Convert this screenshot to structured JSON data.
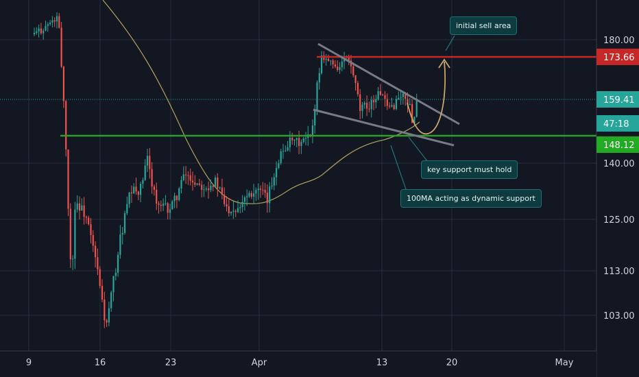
{
  "chart_data": {
    "type": "candlestick",
    "x_ticks": [
      "9",
      "16",
      "23",
      "Apr",
      "13",
      "20",
      "May"
    ],
    "y_ticks": [
      "180.00",
      "140.00",
      "125.00",
      "113.00",
      "103.00"
    ],
    "price_badges": {
      "resistance": "173.66",
      "last_price": "159.41",
      "countdown": "47:18",
      "support": "148.12"
    },
    "levels": {
      "resistance": 173.66,
      "last_price": 159.41,
      "support": 148.12
    },
    "annotations": {
      "sell_area": "initial sell area",
      "key_support": "key support must hold",
      "ma_support": "100MA acting as dynamic support"
    },
    "colors": {
      "background": "#131722",
      "up": "#26a69a",
      "down": "#ef5350",
      "resistance": "#c62828",
      "support": "#2e9e2e",
      "ma": "#a89a5a",
      "arrow": "#c9a66b",
      "channel": "#787b86"
    }
  }
}
